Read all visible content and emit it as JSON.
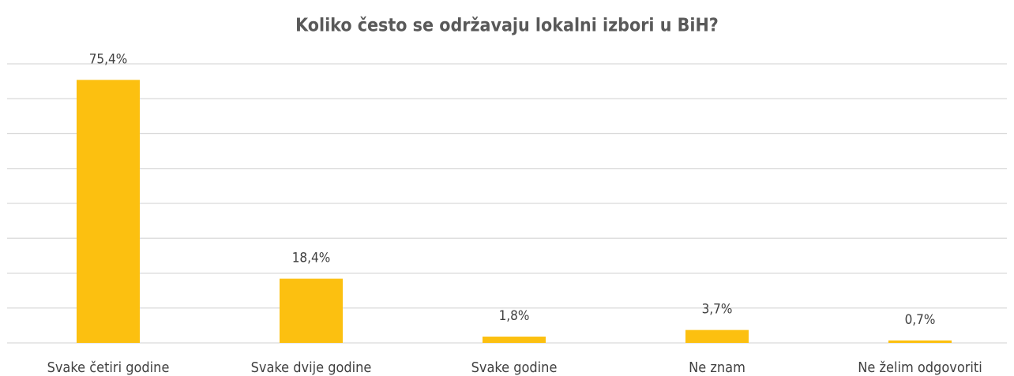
{
  "chart_data": {
    "type": "bar",
    "title": "Koliko često se održavaju lokalni izbori u BiH?",
    "categories": [
      "Svake četiri godine",
      "Svake dvije godine",
      "Svake godine",
      "Ne znam",
      "Ne želim odgovoriti"
    ],
    "values": [
      75.4,
      18.4,
      1.8,
      3.7,
      0.7
    ],
    "value_labels": [
      "75,4%",
      "18,4%",
      "1,8%",
      "3,7%",
      "0,7%"
    ],
    "color": "#fcc010",
    "ylim": [
      0,
      80
    ],
    "yticks": [
      0,
      10,
      20,
      30,
      40,
      50,
      60,
      70,
      80
    ],
    "grid": true
  }
}
